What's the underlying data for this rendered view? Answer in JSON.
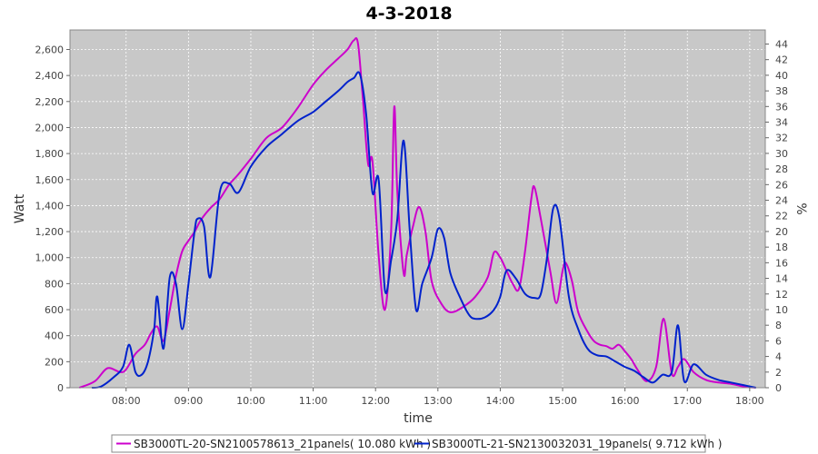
{
  "chart_data": {
    "type": "line",
    "title": "4-3-2018",
    "xlabel": "time",
    "ylabel": "Watt",
    "y2label": "%",
    "x_ticks": [
      "08:00",
      "09:00",
      "10:00",
      "11:00",
      "12:00",
      "13:00",
      "14:00",
      "15:00",
      "16:00",
      "17:00",
      "18:00"
    ],
    "y_ticks": [
      "0",
      "200",
      "400",
      "600",
      "800",
      "1,000",
      "1,200",
      "1,400",
      "1,600",
      "1,800",
      "2,000",
      "2,200",
      "2,400",
      "2,600"
    ],
    "y2_ticks": [
      "0",
      "2",
      "4",
      "6",
      "8",
      "10",
      "12",
      "14",
      "16",
      "18",
      "20",
      "22",
      "24",
      "26",
      "28",
      "30",
      "32",
      "34",
      "36",
      "38",
      "40",
      "42",
      "44"
    ],
    "xlim_hours": [
      7.1,
      18.25
    ],
    "ylim": [
      0,
      2750
    ],
    "y2lim": [
      0,
      45.8
    ],
    "grid": true,
    "legend_position": "bottom",
    "colors": {
      "plot_bg": "#c8c8c8",
      "grid": "#ffffff"
    },
    "series": [
      {
        "name": "SB3000TL-20-SN2100578613_21panels( 10.080 kWh )",
        "color": "#cc00cc",
        "x": [
          7.25,
          7.5,
          7.7,
          7.9,
          8.0,
          8.15,
          8.3,
          8.4,
          8.5,
          8.6,
          8.7,
          8.8,
          8.9,
          9.0,
          9.1,
          9.2,
          9.35,
          9.5,
          9.65,
          9.8,
          10.0,
          10.25,
          10.5,
          10.75,
          11.0,
          11.2,
          11.4,
          11.55,
          11.65,
          11.72,
          11.8,
          11.88,
          11.95,
          12.05,
          12.15,
          12.25,
          12.3,
          12.35,
          12.45,
          12.5,
          12.6,
          12.7,
          12.8,
          12.9,
          13.05,
          13.2,
          13.4,
          13.6,
          13.8,
          13.9,
          14.0,
          14.1,
          14.2,
          14.3,
          14.4,
          14.5,
          14.55,
          14.65,
          14.8,
          14.9,
          15.0,
          15.05,
          15.15,
          15.25,
          15.4,
          15.5,
          15.6,
          15.7,
          15.8,
          15.9,
          16.0,
          16.1,
          16.2,
          16.35,
          16.5,
          16.62,
          16.75,
          16.85,
          16.95,
          17.1,
          17.3,
          17.5,
          17.7,
          17.9,
          18.1
        ],
        "y": [
          0,
          50,
          150,
          120,
          140,
          260,
          330,
          420,
          470,
          360,
          600,
          860,
          1050,
          1130,
          1200,
          1290,
          1380,
          1450,
          1560,
          1640,
          1760,
          1920,
          2000,
          2150,
          2330,
          2440,
          2530,
          2600,
          2670,
          2640,
          2200,
          1720,
          1740,
          1020,
          600,
          1200,
          2160,
          1500,
          880,
          1020,
          1240,
          1390,
          1200,
          820,
          650,
          580,
          620,
          700,
          850,
          1040,
          1000,
          900,
          800,
          760,
          1060,
          1460,
          1540,
          1300,
          900,
          650,
          900,
          960,
          820,
          580,
          430,
          360,
          330,
          320,
          300,
          330,
          280,
          220,
          140,
          50,
          160,
          530,
          110,
          160,
          220,
          120,
          60,
          40,
          30,
          10,
          0
        ]
      },
      {
        "name": "SB3000TL-21-SN2130032031_19panels( 9.712 kWh )",
        "color": "#0022cc",
        "x": [
          7.45,
          7.6,
          7.8,
          7.95,
          8.05,
          8.15,
          8.25,
          8.35,
          8.45,
          8.5,
          8.6,
          8.7,
          8.8,
          8.9,
          9.0,
          9.1,
          9.15,
          9.25,
          9.35,
          9.5,
          9.65,
          9.8,
          10.0,
          10.25,
          10.5,
          10.75,
          11.0,
          11.2,
          11.4,
          11.55,
          11.65,
          11.75,
          11.85,
          11.95,
          12.05,
          12.15,
          12.25,
          12.35,
          12.45,
          12.55,
          12.65,
          12.75,
          12.9,
          13.0,
          13.1,
          13.2,
          13.35,
          13.5,
          13.6,
          13.75,
          13.9,
          14.0,
          14.1,
          14.25,
          14.4,
          14.55,
          14.65,
          14.75,
          14.85,
          14.95,
          15.1,
          15.25,
          15.4,
          15.55,
          15.7,
          15.85,
          16.0,
          16.15,
          16.3,
          16.45,
          16.6,
          16.75,
          16.85,
          16.95,
          17.1,
          17.3,
          17.5,
          17.7,
          17.9,
          18.1
        ],
        "y": [
          0,
          10,
          80,
          160,
          330,
          120,
          100,
          200,
          450,
          700,
          300,
          850,
          800,
          450,
          800,
          1210,
          1300,
          1240,
          850,
          1500,
          1570,
          1500,
          1700,
          1850,
          1950,
          2050,
          2120,
          2200,
          2280,
          2350,
          2380,
          2410,
          2100,
          1500,
          1600,
          750,
          980,
          1300,
          1900,
          1200,
          600,
          800,
          1000,
          1220,
          1150,
          880,
          700,
          560,
          530,
          540,
          600,
          700,
          900,
          840,
          720,
          690,
          720,
          1000,
          1380,
          1300,
          700,
          450,
          300,
          250,
          240,
          200,
          160,
          130,
          80,
          40,
          100,
          120,
          480,
          50,
          180,
          100,
          60,
          40,
          20,
          0
        ]
      }
    ]
  }
}
